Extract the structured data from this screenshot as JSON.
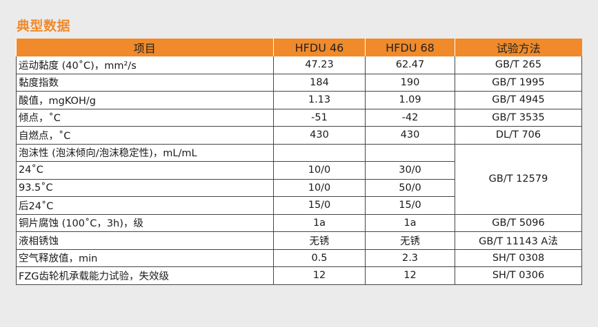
{
  "title": "典型数据",
  "headers": [
    "项目",
    "HFDU 46",
    "HFDU 68",
    "试验方法"
  ],
  "rows": [
    {
      "item": "运动黏度 (40˚C)，mm²/s",
      "v46": "47.23",
      "v68": "62.47",
      "method": "GB/T 265"
    },
    {
      "item": "黏度指数",
      "v46": "184",
      "v68": "190",
      "method": "GB/T 1995"
    },
    {
      "item": "酸值，mgKOH/g",
      "v46": "1.13",
      "v68": "1.09",
      "method": "GB/T 4945"
    },
    {
      "item": "倾点，˚C",
      "v46": "-51",
      "v68": "-42",
      "method": "GB/T 3535"
    },
    {
      "item": "自燃点，˚C",
      "v46": "430",
      "v68": "430",
      "method": "DL/T 706"
    },
    {
      "item": "泡沫性 (泡沫倾向/泡沫稳定性)，mL/mL",
      "v46": "",
      "v68": "",
      "method": "GB/T 12579"
    },
    {
      "item": "24˚C",
      "v46": "10/0",
      "v68": "30/0",
      "method": ""
    },
    {
      "item": "93.5˚C",
      "v46": "10/0",
      "v68": "50/0",
      "method": ""
    },
    {
      "item": "后24˚C",
      "v46": "15/0",
      "v68": "15/0",
      "method": ""
    },
    {
      "item": "铜片腐蚀 (100˚C，3h)，级",
      "v46": "1a",
      "v68": "1a",
      "method": "GB/T 5096"
    },
    {
      "item": "液相锈蚀",
      "v46": "无锈",
      "v68": "无锈",
      "method": "GB/T 11143 A法"
    },
    {
      "item": "空气释放值，min",
      "v46": "0.5",
      "v68": "2.3",
      "method": "SH/T 0308"
    },
    {
      "item": "FZG齿轮机承载能力试验，失效级",
      "v46": "12",
      "v68": "12",
      "method": "SH/T 0306"
    }
  ]
}
